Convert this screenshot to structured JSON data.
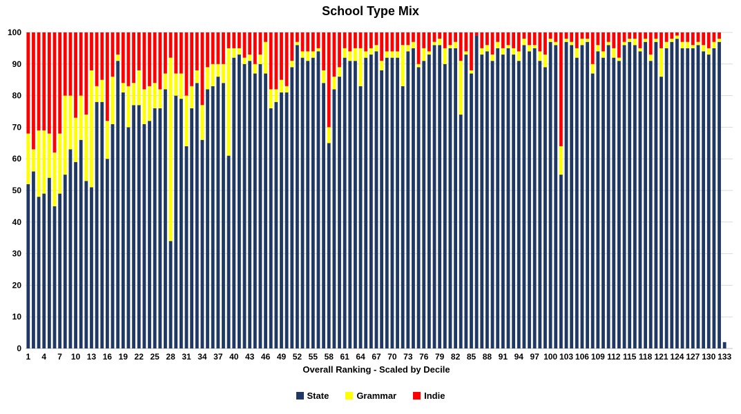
{
  "colors": {
    "background": "#FFFFFF",
    "gridline": "#D9D9D9",
    "axis_line": "#BFBFBF",
    "text": "#000000"
  },
  "chart_data": {
    "type": "bar",
    "stacked": true,
    "title": "School Type Mix",
    "xlabel": "Overall Ranking  - Scaled by Decile",
    "ylabel": "",
    "ylim": [
      0,
      100
    ],
    "yticks": [
      0,
      10,
      20,
      30,
      40,
      50,
      60,
      70,
      80,
      90,
      100
    ],
    "grid": "horizontal",
    "legend_position": "bottom",
    "xtick_interval": 3,
    "xtick_labels": [
      1,
      4,
      7,
      10,
      13,
      16,
      19,
      22,
      25,
      28,
      31,
      34,
      37,
      40,
      43,
      46,
      49,
      52,
      55,
      58,
      61,
      64,
      67,
      70,
      73,
      76,
      79,
      82,
      85,
      88,
      91,
      94,
      97,
      100,
      103,
      106,
      109,
      112,
      115,
      118,
      121,
      124,
      127,
      130
    ],
    "categories": [
      1,
      2,
      3,
      4,
      5,
      6,
      7,
      8,
      9,
      10,
      11,
      12,
      13,
      14,
      15,
      16,
      17,
      18,
      19,
      20,
      21,
      22,
      23,
      24,
      25,
      26,
      27,
      28,
      29,
      30,
      31,
      32,
      33,
      34,
      35,
      36,
      37,
      38,
      39,
      40,
      41,
      42,
      43,
      44,
      45,
      46,
      47,
      48,
      49,
      50,
      51,
      52,
      53,
      54,
      55,
      56,
      57,
      58,
      59,
      60,
      61,
      62,
      63,
      64,
      65,
      66,
      67,
      68,
      69,
      70,
      71,
      72,
      73,
      74,
      75,
      76,
      77,
      78,
      79,
      80,
      81,
      82,
      83,
      84,
      85,
      86,
      87,
      88,
      89,
      90,
      91,
      92,
      93,
      94,
      95,
      96,
      97,
      98,
      99,
      100,
      101,
      102,
      103,
      104,
      105,
      106,
      107,
      108,
      109,
      110,
      111,
      112,
      113,
      114,
      115,
      116,
      117,
      118,
      119,
      120,
      121,
      122,
      123,
      124,
      125,
      126,
      127,
      128,
      129,
      130,
      131,
      132,
      133
    ],
    "series": [
      {
        "name": "State",
        "color": "#1F3864",
        "values": [
          52,
          56,
          48,
          49,
          54,
          45,
          49,
          55,
          63,
          59,
          66,
          53,
          51,
          78,
          78,
          60,
          71,
          91,
          81,
          70,
          77,
          77,
          71,
          72,
          76,
          76,
          82,
          34,
          80,
          79,
          64,
          76,
          84,
          66,
          82,
          83,
          86,
          84,
          61,
          92,
          93,
          90,
          91,
          87,
          90,
          87,
          76,
          78,
          81,
          81,
          89,
          96,
          92,
          91,
          92,
          94,
          84,
          65,
          82,
          86,
          92,
          91,
          91,
          83,
          92,
          93,
          94,
          88,
          92,
          92,
          92,
          83,
          94,
          95,
          89,
          91,
          93,
          96,
          96,
          90,
          95,
          95,
          74,
          93,
          87,
          99,
          93,
          94,
          91,
          95,
          93,
          95,
          93,
          91,
          96,
          94,
          95,
          91,
          89,
          97,
          96,
          55,
          97,
          96,
          92,
          96,
          97,
          87,
          94,
          92,
          96,
          92,
          91,
          96,
          97,
          96,
          94,
          97,
          91,
          97,
          86,
          95,
          97,
          98,
          95,
          95,
          95,
          96,
          94,
          93,
          95,
          97,
          2
        ]
      },
      {
        "name": "Grammar",
        "color": "#FFFF00",
        "values": [
          16,
          7,
          21,
          20,
          14,
          17,
          19,
          25,
          17,
          14,
          14,
          21,
          37,
          5,
          7,
          12,
          15,
          2,
          3,
          13,
          7,
          11,
          11,
          11,
          8,
          6,
          5,
          58,
          7,
          8,
          16,
          7,
          4,
          11,
          7,
          7,
          4,
          6,
          34,
          3,
          2,
          2,
          2,
          3,
          3,
          10,
          6,
          4,
          4,
          2,
          2,
          1,
          2,
          3,
          2,
          1,
          4,
          5,
          4,
          3,
          3,
          3,
          4,
          12,
          2,
          2,
          2,
          3,
          2,
          2,
          2,
          13,
          2,
          2,
          1,
          4,
          1,
          1,
          2,
          5,
          1,
          2,
          17,
          1,
          1,
          0,
          2,
          2,
          2,
          2,
          2,
          1,
          2,
          3,
          2,
          2,
          1,
          3,
          4,
          1,
          1,
          9,
          1,
          1,
          3,
          2,
          1,
          3,
          2,
          2,
          1,
          3,
          1,
          1,
          1,
          2,
          1,
          1,
          2,
          1,
          9,
          2,
          1,
          1,
          2,
          2,
          1,
          1,
          2,
          2,
          2,
          1,
          0
        ]
      },
      {
        "name": "Indie",
        "color": "#FF0000",
        "values": [
          32,
          37,
          31,
          31,
          32,
          38,
          32,
          20,
          20,
          27,
          20,
          26,
          12,
          17,
          15,
          28,
          14,
          7,
          16,
          17,
          16,
          12,
          18,
          17,
          16,
          18,
          13,
          8,
          13,
          13,
          20,
          17,
          12,
          23,
          11,
          10,
          10,
          10,
          5,
          5,
          5,
          8,
          7,
          10,
          7,
          3,
          18,
          18,
          15,
          17,
          9,
          3,
          6,
          6,
          6,
          5,
          12,
          30,
          14,
          11,
          5,
          6,
          5,
          5,
          6,
          5,
          4,
          9,
          6,
          6,
          6,
          4,
          4,
          3,
          10,
          5,
          6,
          3,
          2,
          5,
          4,
          3,
          9,
          6,
          12,
          1,
          5,
          4,
          7,
          3,
          5,
          4,
          5,
          6,
          2,
          4,
          4,
          6,
          7,
          2,
          3,
          36,
          2,
          3,
          5,
          2,
          2,
          10,
          4,
          6,
          3,
          5,
          8,
          3,
          2,
          2,
          5,
          2,
          7,
          2,
          5,
          3,
          2,
          1,
          3,
          3,
          4,
          3,
          4,
          5,
          3,
          2,
          0
        ]
      }
    ]
  }
}
